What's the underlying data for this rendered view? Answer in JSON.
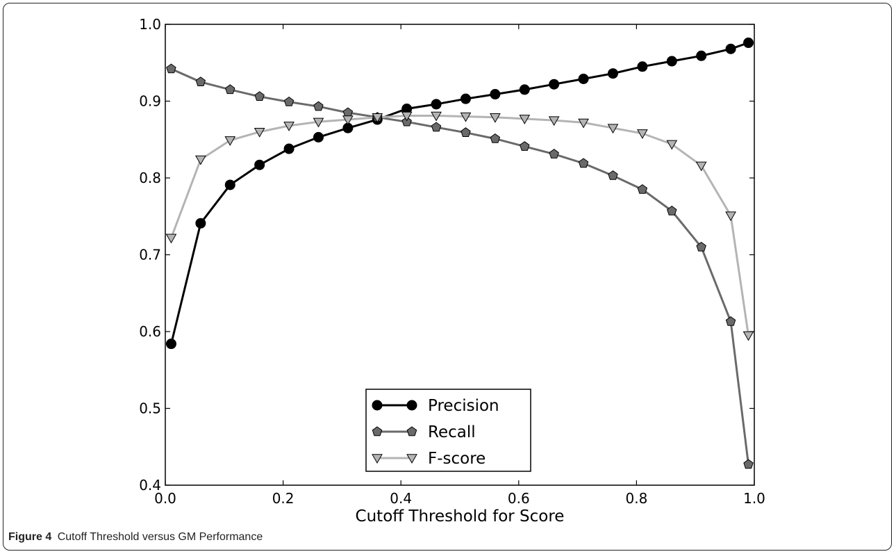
{
  "caption": {
    "label": "Figure 4",
    "text": "Cutoff Threshold versus GM Performance"
  },
  "chart_data": {
    "type": "line",
    "xlabel": "Cutoff Threshold for Score",
    "ylabel": "",
    "xlim": [
      0.0,
      1.0
    ],
    "ylim": [
      0.4,
      1.0
    ],
    "xticks": [
      "0.0",
      "0.2",
      "0.4",
      "0.6",
      "0.8",
      "1.0"
    ],
    "yticks": [
      "0.4",
      "0.5",
      "0.6",
      "0.7",
      "0.8",
      "0.9",
      "1.0"
    ],
    "grid": false,
    "legend_position": "lower-center",
    "x": [
      0.01,
      0.06,
      0.11,
      0.16,
      0.21,
      0.26,
      0.31,
      0.36,
      0.41,
      0.46,
      0.51,
      0.56,
      0.61,
      0.66,
      0.71,
      0.76,
      0.81,
      0.86,
      0.91,
      0.96,
      0.99
    ],
    "series": [
      {
        "name": "Precision",
        "marker": "circle",
        "color": "#000000",
        "values": [
          0.584,
          0.741,
          0.791,
          0.817,
          0.838,
          0.853,
          0.865,
          0.876,
          0.89,
          0.896,
          0.903,
          0.909,
          0.915,
          0.922,
          0.929,
          0.936,
          0.945,
          0.952,
          0.959,
          0.968,
          0.976
        ]
      },
      {
        "name": "Recall",
        "marker": "pentagon",
        "color": "#6a6a6a",
        "values": [
          0.942,
          0.925,
          0.915,
          0.906,
          0.899,
          0.893,
          0.885,
          0.879,
          0.873,
          0.866,
          0.859,
          0.851,
          0.841,
          0.831,
          0.819,
          0.803,
          0.785,
          0.757,
          0.71,
          0.613,
          0.427
        ]
      },
      {
        "name": "F-score",
        "marker": "triangle-down",
        "color": "#b4b4b4",
        "values": [
          0.722,
          0.824,
          0.849,
          0.86,
          0.868,
          0.873,
          0.876,
          0.879,
          0.881,
          0.881,
          0.88,
          0.879,
          0.877,
          0.875,
          0.872,
          0.865,
          0.858,
          0.844,
          0.816,
          0.751,
          0.595
        ]
      }
    ]
  }
}
